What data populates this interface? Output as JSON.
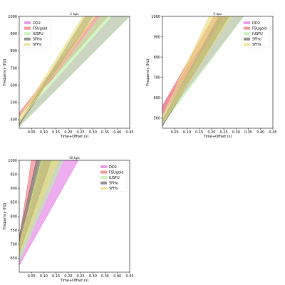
{
  "chart_data": [
    {
      "type": "area",
      "title": "1 kpc",
      "xlabel": "Time+Offset (s)",
      "ylabel": "Frequency (Hz)",
      "xlim": [
        0.0,
        0.45
      ],
      "ylim": [
        350,
        1000
      ],
      "xticks": [
        0.05,
        0.1,
        0.15,
        0.2,
        0.25,
        0.3,
        0.35,
        0.4,
        0.45
      ],
      "yticks": [
        400,
        500,
        600,
        700,
        800,
        900,
        1000
      ],
      "legend_position": "top-left",
      "grid": false,
      "series": [
        {
          "name": "DD2",
          "color": "#e377e3",
          "lower": [
            [
              0.0,
              360
            ],
            [
              0.45,
              1000
            ]
          ],
          "upper": [
            [
              0.0,
              390
            ],
            [
              0.38,
              1000
            ]
          ]
        },
        {
          "name": "FSUgold",
          "color": "#ef7474",
          "lower": [
            [
              0.0,
              420
            ],
            [
              0.36,
              1000
            ]
          ],
          "upper": [
            [
              0.0,
              440
            ],
            [
              0.31,
              1000
            ]
          ]
        },
        {
          "name": "IUSFU",
          "color": "#b6f0a4",
          "lower": [
            [
              0.0,
              360
            ],
            [
              0.45,
              1000
            ]
          ],
          "upper": [
            [
              0.0,
              380
            ],
            [
              0.33,
              1000
            ]
          ]
        },
        {
          "name": "SFHo",
          "color": "#6e6e6e",
          "lower": [
            [
              0.0,
              370
            ],
            [
              0.3,
              1000
            ]
          ],
          "upper": [
            [
              0.0,
              380
            ],
            [
              0.27,
              1000
            ]
          ]
        },
        {
          "name": "SFHx",
          "color": "#e8de7a",
          "lower": [
            [
              0.0,
              380
            ],
            [
              0.31,
              1000
            ]
          ],
          "upper": [
            [
              0.0,
              410
            ],
            [
              0.26,
              1000
            ]
          ]
        }
      ]
    },
    {
      "type": "area",
      "title": "5 kpc",
      "xlabel": "Time+Offset (s)",
      "ylabel": "Frequency (Hz)",
      "xlim": [
        0.0,
        0.45
      ],
      "ylim": [
        450,
        1000
      ],
      "xticks": [
        0.05,
        0.1,
        0.15,
        0.2,
        0.25,
        0.3,
        0.35,
        0.4,
        0.45
      ],
      "yticks": [
        500,
        600,
        700,
        800,
        900,
        1000
      ],
      "legend_position": "top-right",
      "grid": false,
      "series": [
        {
          "name": "DD2",
          "color": "#e377e3",
          "lower": [
            [
              0.0,
              490
            ],
            [
              0.33,
              1000
            ]
          ],
          "upper": [
            [
              0.0,
              560
            ],
            [
              0.24,
              1000
            ]
          ]
        },
        {
          "name": "FSUgold",
          "color": "#ef7474",
          "lower": [
            [
              0.0,
              520
            ],
            [
              0.26,
              1000
            ]
          ],
          "upper": [
            [
              0.0,
              560
            ],
            [
              0.21,
              1000
            ]
          ]
        },
        {
          "name": "IUSFU",
          "color": "#b6f0a4",
          "lower": [
            [
              0.0,
              470
            ],
            [
              0.33,
              1000
            ]
          ],
          "upper": [
            [
              0.0,
              500
            ],
            [
              0.25,
              1000
            ]
          ]
        },
        {
          "name": "SFHo",
          "color": "#6e6e6e",
          "lower": [
            [
              0.0,
              460
            ],
            [
              0.27,
              1000
            ]
          ],
          "upper": [
            [
              0.0,
              490
            ],
            [
              0.23,
              1000
            ]
          ]
        },
        {
          "name": "SFHx",
          "color": "#e8de7a",
          "lower": [
            [
              0.0,
              470
            ],
            [
              0.28,
              1000
            ]
          ],
          "upper": [
            [
              0.0,
              510
            ],
            [
              0.19,
              1000
            ]
          ]
        }
      ]
    },
    {
      "type": "area",
      "title": "10 kpc",
      "xlabel": "Time+Offset (s)",
      "ylabel": "Frequency (Hz)",
      "xlim": [
        0.0,
        0.45
      ],
      "ylim": [
        600,
        1000
      ],
      "xticks": [
        0.05,
        0.1,
        0.15,
        0.2,
        0.25,
        0.3,
        0.35,
        0.4,
        0.45
      ],
      "yticks": [
        650,
        700,
        750,
        800,
        850,
        900,
        950,
        1000
      ],
      "legend_position": "top-right",
      "grid": false,
      "series": [
        {
          "name": "DD2",
          "color": "#e377e3",
          "lower": [
            [
              0.0,
              625
            ],
            [
              0.24,
              1000
            ]
          ],
          "upper": [
            [
              0.0,
              665
            ],
            [
              0.1,
              1000
            ]
          ]
        },
        {
          "name": "FSUgold",
          "color": "#ef7474",
          "lower": [
            [
              0.0,
              690
            ],
            [
              0.08,
              1000
            ]
          ],
          "upper": [
            [
              0.0,
              720
            ],
            [
              0.05,
              1000
            ]
          ]
        },
        {
          "name": "IUSFU",
          "color": "#b6f0a4",
          "lower": [
            [
              0.0,
              640
            ],
            [
              0.18,
              1000
            ]
          ],
          "upper": [
            [
              0.0,
              680
            ],
            [
              0.08,
              1000
            ]
          ]
        },
        {
          "name": "SFHo",
          "color": "#6e6e6e",
          "lower": [
            [
              0.0,
              670
            ],
            [
              0.13,
              1000
            ]
          ],
          "upper": [
            [
              0.0,
              730
            ],
            [
              0.07,
              1000
            ]
          ]
        },
        {
          "name": "SFHx",
          "color": "#e8de7a",
          "lower": [
            [
              0.0,
              660
            ],
            [
              0.16,
              1000
            ]
          ],
          "upper": [
            [
              0.0,
              700
            ],
            [
              0.09,
              1000
            ]
          ]
        }
      ]
    }
  ]
}
